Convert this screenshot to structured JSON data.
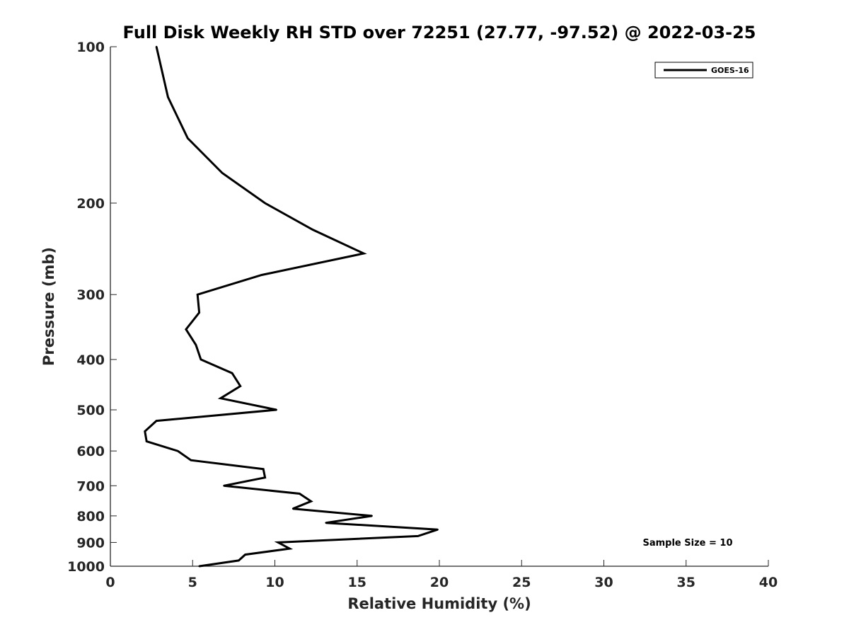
{
  "chart_data": {
    "type": "line",
    "title": "Full Disk Weekly RH STD over 72251 (27.77, -97.52) @ 2022-03-25",
    "xlabel": "Relative Humidity (%)",
    "ylabel": "Pressure (mb)",
    "xlim": [
      0,
      40
    ],
    "ylim": [
      100,
      1000
    ],
    "yscale": "log",
    "y_reversed": true,
    "grid": false,
    "x_ticks": [
      0,
      5,
      10,
      15,
      20,
      25,
      30,
      35,
      40
    ],
    "x_tick_labels": [
      "0",
      "5",
      "10",
      "15",
      "20",
      "25",
      "30",
      "35",
      "40"
    ],
    "y_ticks": [
      100,
      200,
      300,
      400,
      500,
      600,
      700,
      800,
      900,
      1000
    ],
    "y_tick_labels": [
      "100",
      "200",
      "300",
      "400",
      "500",
      "600",
      "700",
      "800",
      "900",
      "1000"
    ],
    "legend": {
      "position": "top-right",
      "entries": [
        "GOES-16"
      ]
    },
    "annotation": "Sample Size = 10",
    "series": [
      {
        "name": "GOES-16",
        "color": "#000000",
        "points": [
          [
            2.8,
            100
          ],
          [
            3.5,
            125
          ],
          [
            4.7,
            150
          ],
          [
            6.8,
            175
          ],
          [
            9.4,
            200
          ],
          [
            12.3,
            225
          ],
          [
            15.4,
            250
          ],
          [
            9.2,
            275
          ],
          [
            5.3,
            300
          ],
          [
            5.4,
            325
          ],
          [
            4.6,
            350
          ],
          [
            5.2,
            375
          ],
          [
            5.5,
            400
          ],
          [
            7.4,
            425
          ],
          [
            7.9,
            450
          ],
          [
            6.7,
            475
          ],
          [
            10.1,
            500
          ],
          [
            2.8,
            525
          ],
          [
            2.1,
            550
          ],
          [
            2.2,
            575
          ],
          [
            4.1,
            600
          ],
          [
            4.9,
            625
          ],
          [
            9.3,
            650
          ],
          [
            9.4,
            675
          ],
          [
            6.9,
            700
          ],
          [
            11.5,
            725
          ],
          [
            12.2,
            750
          ],
          [
            11.1,
            775
          ],
          [
            15.9,
            800
          ],
          [
            13.1,
            825
          ],
          [
            19.9,
            850
          ],
          [
            18.7,
            875
          ],
          [
            10.2,
            900
          ],
          [
            10.9,
            925
          ],
          [
            8.2,
            950
          ],
          [
            7.8,
            975
          ],
          [
            5.4,
            1000
          ]
        ]
      }
    ]
  }
}
